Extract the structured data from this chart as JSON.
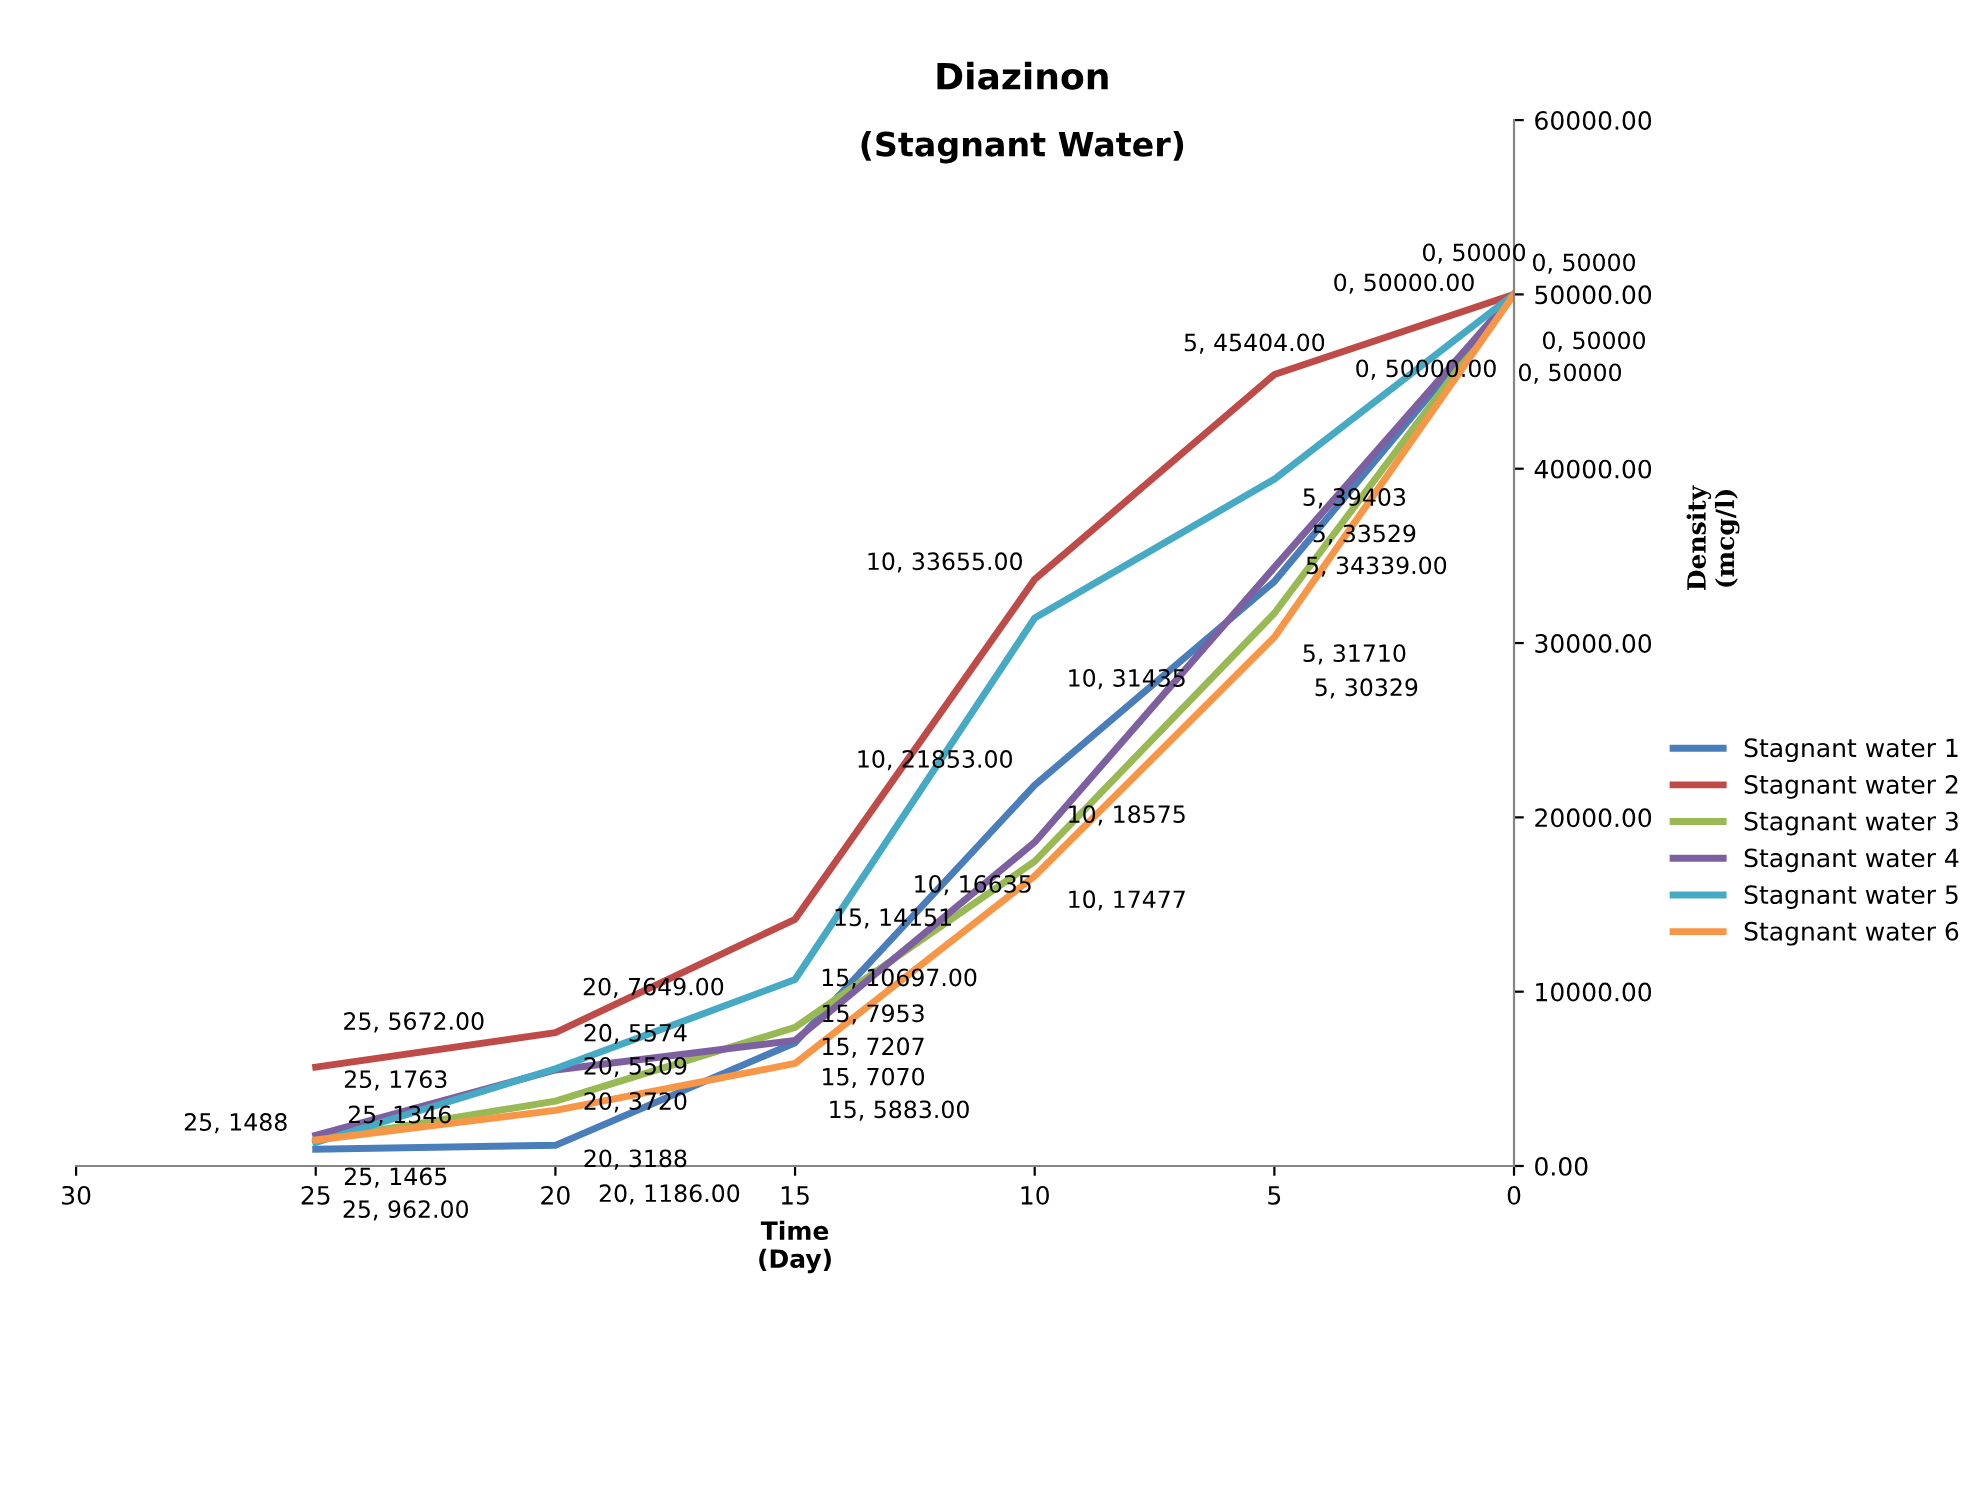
{
  "chart_data": {
    "type": "line",
    "title": "Diazinon",
    "subtitle": "(Stagnant Water)",
    "xlabel": "Time\n(Day)",
    "ylabel": "Density\n(mcg/l)",
    "x": [
      25,
      20,
      15,
      10,
      5,
      0
    ],
    "series": [
      {
        "name": "Stagnant water 1",
        "color": "#4a7ebb",
        "values": [
          962,
          1186,
          7070,
          21853,
          33529,
          50000
        ],
        "value_labels": [
          "25, 962.00",
          "20, 1186.00",
          "15, 7070",
          "10, 21853.00",
          "5, 33529",
          "0, 50000"
        ]
      },
      {
        "name": "Stagnant water 2",
        "color": "#be4b48",
        "values": [
          5672,
          7649,
          14151,
          33655,
          45404,
          50000
        ],
        "value_labels": [
          "25, 5672.00",
          "20, 7649.00",
          "15, 14151",
          "10, 33655.00",
          "5, 45404.00",
          "0, 50000.00"
        ]
      },
      {
        "name": "Stagnant water 3",
        "color": "#98b954",
        "values": [
          1465,
          3720,
          7953,
          17477,
          31710,
          50000
        ],
        "value_labels": [
          "25, 1465",
          "20, 3720",
          "15, 7953",
          "10, 17477",
          "5, 31710",
          "0, 50000"
        ]
      },
      {
        "name": "Stagnant water 4",
        "color": "#7d60a0",
        "values": [
          1763,
          5509,
          7207,
          18575,
          34339,
          50000
        ],
        "value_labels": [
          "25, 1763",
          "20, 5509",
          "15, 7207",
          "10, 18575",
          "5, 34339.00",
          "0, 50000"
        ]
      },
      {
        "name": "Stagnant water 5",
        "color": "#46aac5",
        "values": [
          1346,
          5574,
          10697,
          31435,
          39403,
          50000
        ],
        "value_labels": [
          "25, 1346",
          "20, 5574",
          "15, 10697.00",
          "10, 31435",
          "5, 39403",
          "0, 50000.00"
        ]
      },
      {
        "name": "Stagnant water 6",
        "color": "#f79646",
        "values": [
          1488,
          3188,
          5883,
          16635,
          30329,
          50000
        ],
        "value_labels": [
          "25, 1488",
          "20, 3188",
          "15, 5883.00",
          "10, 16635",
          "5, 30329",
          "0, 50000"
        ]
      }
    ],
    "xlim": [
      30,
      0
    ],
    "xticks": [
      30,
      25,
      20,
      15,
      10,
      5,
      0
    ],
    "ylim": [
      0,
      60000
    ],
    "yticks": [
      {
        "value": 0,
        "label": "0.00"
      },
      {
        "value": 10000,
        "label": "10000.00"
      },
      {
        "value": 20000,
        "label": "20000.00"
      },
      {
        "value": 30000,
        "label": "30000.00"
      },
      {
        "value": 40000,
        "label": "40000.00"
      },
      {
        "value": 50000,
        "label": "50000.00"
      },
      {
        "value": 60000,
        "label": "60000.00"
      }
    ],
    "grid": false,
    "legend": "right",
    "marker": "none",
    "line_style": "solid"
  }
}
